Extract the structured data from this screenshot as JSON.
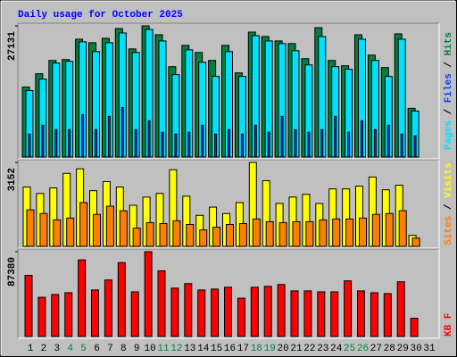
{
  "chart_data": {
    "type": "bar",
    "title": "Daily usage for October 2025",
    "categories": [
      "1",
      "2",
      "3",
      "4",
      "5",
      "6",
      "7",
      "8",
      "9",
      "10",
      "11",
      "12",
      "13",
      "14",
      "15",
      "16",
      "17",
      "18",
      "19",
      "20",
      "21",
      "22",
      "23",
      "24",
      "25",
      "26",
      "27",
      "28",
      "29",
      "30",
      "31"
    ],
    "category_colors": [
      "#000000",
      "#000000",
      "#000000",
      "#008040",
      "#008040",
      "#000000",
      "#000000",
      "#000000",
      "#000000",
      "#000000",
      "#008040",
      "#008040",
      "#000000",
      "#000000",
      "#000000",
      "#000000",
      "#000000",
      "#008040",
      "#008040",
      "#000000",
      "#000000",
      "#000000",
      "#000000",
      "#000000",
      "#008040",
      "#008040",
      "#000000",
      "#000000",
      "#000000",
      "#000000",
      "#000000"
    ],
    "legend_separator": " / ",
    "panels": [
      {
        "ylim": [
          0,
          27131
        ],
        "yticks": [
          27131
        ],
        "series": [
          {
            "name": "Pages",
            "color": "#00e0ff",
            "values": [
              13749,
              16131,
              19431,
              19798,
              23830,
              21814,
              23647,
              25664,
              21631,
              26397,
              24014,
              17048,
              22181,
              19614,
              16681,
              21814,
              16681,
              25114,
              24014,
              23464,
              21997,
              19064,
              24930,
              18698,
              18148,
              24380,
              19981,
              16681,
              24380,
              9532,
              0
            ]
          },
          {
            "name": "Files",
            "color": "#0040ff",
            "values": [
              4766,
              6599,
              5683,
              5683,
              8799,
              5683,
              8432,
              10265,
              5683,
              7516,
              5133,
              4766,
              5133,
              6599,
              4766,
              5683,
              4766,
              6599,
              5133,
              8432,
              5683,
              5133,
              5683,
              8432,
              5133,
              7516,
              5683,
              6599,
              4766,
              4400,
              0
            ]
          },
          {
            "name": "Hits",
            "color": "#008040",
            "values": [
              14481,
              17231,
              19981,
              20164,
              24380,
              23647,
              24563,
              26580,
              22364,
              27131,
              25297,
              18698,
              23097,
              21631,
              19981,
              23097,
              17414,
              25847,
              24930,
              24014,
              23464,
              20348,
              26764,
              19981,
              18881,
              25297,
              21081,
              18515,
              25480,
              10082,
              0
            ]
          }
        ]
      },
      {
        "ylim": [
          0,
          3152
        ],
        "yticks": [
          3152
        ],
        "series": [
          {
            "name": "Sites",
            "color": "#ff8000",
            "values": [
              1370,
              1233,
              994,
              1062,
              1644,
              1199,
              1507,
              1336,
              685,
              891,
              857,
              959,
              822,
              617,
              719,
              822,
              857,
              1028,
              925,
              891,
              925,
              925,
              994,
              1028,
              1028,
              1062,
              1199,
              1233,
              1336,
              308,
              0
            ]
          },
          {
            "name": "Visits",
            "color": "#ffff00",
            "values": [
              2227,
              1987,
              2193,
              2741,
              2912,
              2090,
              2432,
              2227,
              1542,
              1850,
              1987,
              2878,
              1884,
              1165,
              1473,
              1233,
              1644,
              3152,
              2467,
              1610,
              1850,
              1953,
              1610,
              2158,
              2158,
              2261,
              2604,
              2124,
              2296,
              411,
              0
            ]
          }
        ]
      },
      {
        "ylim": [
          0,
          87380
        ],
        "yticks": [
          87380
        ],
        "series": [
          {
            "name": "KB F",
            "color": "#ff0000",
            "values": [
              62953,
              40403,
              43222,
              45101,
              78926,
              47920,
              58255,
              76108,
              46040,
              87380,
              67651,
              49799,
              54497,
              47920,
              48859,
              50738,
              39463,
              50738,
              51678,
              53557,
              46980,
              46980,
              46040,
              46040,
              57316,
              46980,
              45101,
              44161,
              56376,
              18792,
              0
            ]
          }
        ]
      }
    ]
  }
}
